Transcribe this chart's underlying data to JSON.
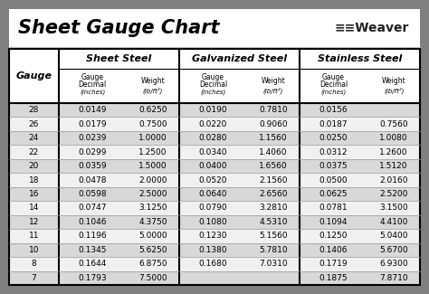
{
  "title": "Sheet Gauge Chart",
  "bg_outer": "#808080",
  "bg_title": "#ffffff",
  "bg_table": "#ffffff",
  "row_bg_dark": "#d8d8d8",
  "row_bg_light": "#f0f0f0",
  "gauges": [
    28,
    26,
    24,
    22,
    20,
    18,
    16,
    14,
    12,
    11,
    10,
    8,
    7
  ],
  "sheet_steel_decimal": [
    "0.0149",
    "0.0179",
    "0.0239",
    "0.0299",
    "0.0359",
    "0.0478",
    "0.0598",
    "0.0747",
    "0.1046",
    "0.1196",
    "0.1345",
    "0.1644",
    "0.1793"
  ],
  "sheet_steel_weight": [
    "0.6250",
    "0.7500",
    "1.0000",
    "1.2500",
    "1.5000",
    "2.0000",
    "2.5000",
    "3.1250",
    "4.3750",
    "5.0000",
    "5.6250",
    "6.8750",
    "7.5000"
  ],
  "galv_decimal": [
    "0.0190",
    "0.0220",
    "0.0280",
    "0.0340",
    "0.0400",
    "0.0520",
    "0.0640",
    "0.0790",
    "0.1080",
    "0.1230",
    "0.1380",
    "0.1680",
    ""
  ],
  "galv_weight": [
    "0.7810",
    "0.9060",
    "1.1560",
    "1.4060",
    "1.6560",
    "2.1560",
    "2.6560",
    "3.2810",
    "4.5310",
    "5.1560",
    "5.7810",
    "7.0310",
    ""
  ],
  "stainless_decimal": [
    "0.0156",
    "0.0187",
    "0.0250",
    "0.0312",
    "0.0375",
    "0.0500",
    "0.0625",
    "0.0781",
    "0.1094",
    "0.1250",
    "0.1406",
    "0.1719",
    "0.1875"
  ],
  "stainless_weight": [
    "",
    "0.7560",
    "1.0080",
    "1.2600",
    "1.5120",
    "2.0160",
    "2.5200",
    "3.1500",
    "4.4100",
    "5.0400",
    "5.6700",
    "6.9300",
    "7.8710"
  ],
  "figw": 4.74,
  "figh": 3.25,
  "dpi": 100
}
